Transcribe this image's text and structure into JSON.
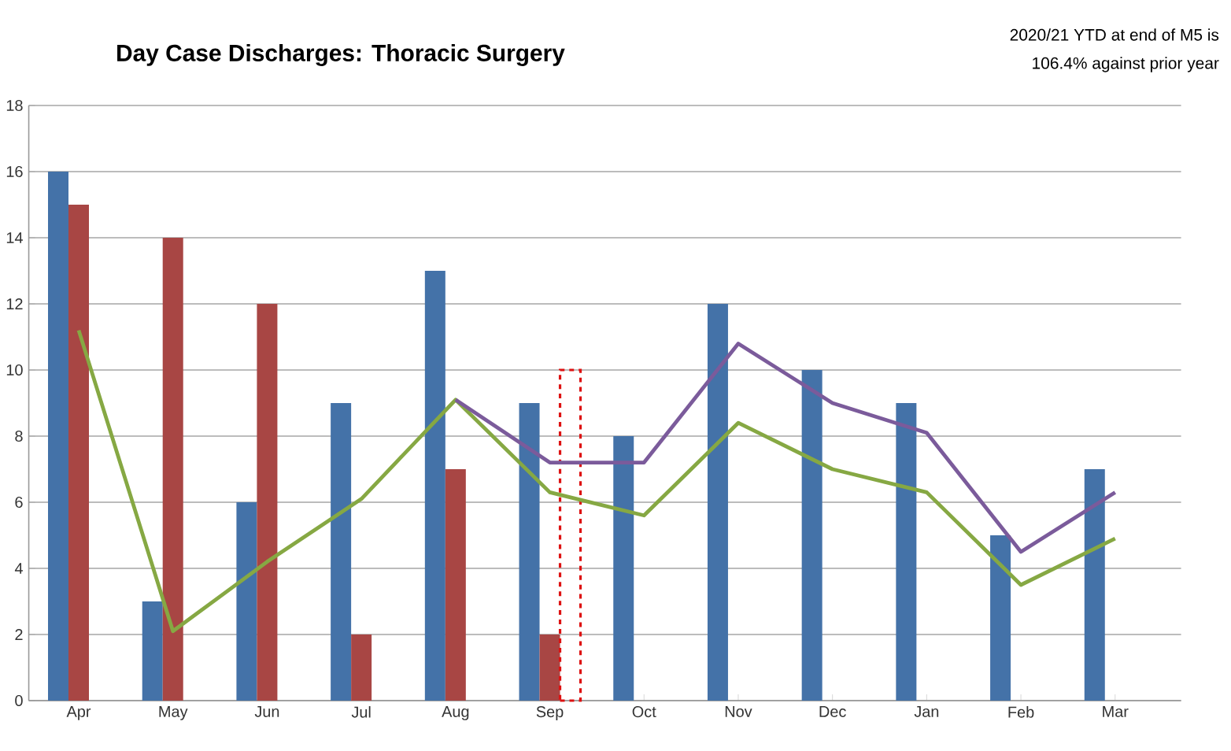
{
  "chart_data": {
    "type": "bar",
    "title": "Day Case Discharges: Thoracic Surgery",
    "annotations": [
      "2020/21 YTD at end of M5 is",
      "106.4% against prior year"
    ],
    "categories": [
      "Apr",
      "May",
      "Jun",
      "Jul",
      "Aug",
      "Sep",
      "Oct",
      "Nov",
      "Dec",
      "Jan",
      "Feb",
      "Mar"
    ],
    "series": [
      {
        "color": "#4472a8",
        "values": [
          16,
          3,
          6,
          9,
          13,
          9,
          8,
          12,
          10,
          9,
          5,
          7
        ]
      },
      {
        "color": "#a84644",
        "values": [
          15,
          14,
          12,
          2,
          7,
          2,
          null,
          null,
          null,
          null,
          null,
          null
        ]
      },
      {
        "color": "#dd1111",
        "line_style": "dashed",
        "values": [
          null,
          null,
          null,
          null,
          null,
          10,
          null,
          null,
          null,
          null,
          null,
          null
        ]
      },
      {
        "type": "line",
        "color": "#86a843",
        "values": [
          11.2,
          2.1,
          4.2,
          6.1,
          9.1,
          6.3,
          5.6,
          8.4,
          7.0,
          6.3,
          3.5,
          4.9
        ]
      },
      {
        "type": "line",
        "color": "#7b5b9b",
        "values": [
          null,
          null,
          null,
          null,
          9.1,
          7.2,
          7.2,
          10.8,
          9.0,
          8.1,
          4.5,
          6.3
        ]
      }
    ],
    "ylim": [
      0,
      18
    ],
    "yticks": [
      0,
      2,
      4,
      6,
      8,
      10,
      12,
      14,
      16,
      18
    ],
    "grid": "y"
  }
}
